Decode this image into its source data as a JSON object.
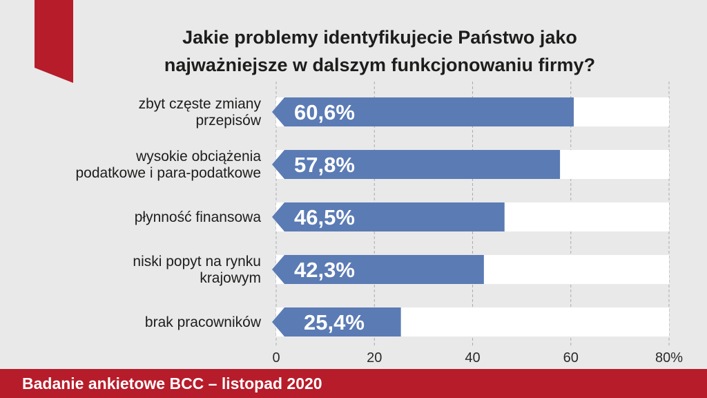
{
  "chart_data": {
    "type": "bar",
    "orientation": "horizontal",
    "title_lines": [
      "Jakie problemy identyfikujecie Państwo jako",
      "najważniejsze w dalszym funkcjonowaniu firmy?"
    ],
    "categories": [
      [
        "zbyt częste zmiany",
        "przepisów"
      ],
      [
        "wysokie obciążenia",
        "podatkowe i para-podatkowe"
      ],
      [
        "płynność finansowa"
      ],
      [
        "niski popyt na rynku",
        "krajowym"
      ],
      [
        "brak pracowników"
      ]
    ],
    "values": [
      60.6,
      57.8,
      46.5,
      42.3,
      25.4
    ],
    "value_labels": [
      "60,6%",
      "57,8%",
      "46,5%",
      "42,3%",
      "25,4%"
    ],
    "xlim": [
      0,
      80
    ],
    "x_ticks": [
      "0",
      "20",
      "40",
      "60",
      "80%"
    ],
    "x_tick_values": [
      0,
      20,
      40,
      60,
      80
    ],
    "grid": true,
    "colors": {
      "bar": "#5b7bb4",
      "track": "#ffffff",
      "gridline": "#a9aab0",
      "accent": "#b71c2a",
      "text": "#1d1d1b"
    }
  },
  "footer": {
    "text": "Badanie ankietowe BCC – listopad 2020"
  }
}
